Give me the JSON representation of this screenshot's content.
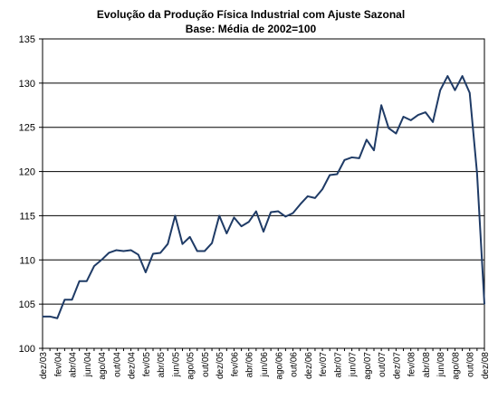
{
  "chart_data": {
    "type": "line",
    "title": "Evolução da Produção Física Industrial com Ajuste Sazonal",
    "subtitle": "Base: Média de 2002=100",
    "xlabel": "",
    "ylabel": "",
    "ylim": [
      100,
      135
    ],
    "yticks": [
      100,
      105,
      110,
      115,
      120,
      125,
      130,
      135
    ],
    "grid": true,
    "legend": "none",
    "colors": {
      "line": "#1f3b66",
      "grid": "#000000",
      "background": "#ffffff"
    },
    "x": [
      "dez/03",
      "jan/04",
      "fev/04",
      "mar/04",
      "abr/04",
      "mai/04",
      "jun/04",
      "jul/04",
      "ago/04",
      "set/04",
      "out/04",
      "nov/04",
      "dez/04",
      "jan/05",
      "fev/05",
      "mar/05",
      "abr/05",
      "mai/05",
      "jun/05",
      "jul/05",
      "ago/05",
      "set/05",
      "out/05",
      "nov/05",
      "dez/05",
      "jan/06",
      "fev/06",
      "mar/06",
      "abr/06",
      "mai/06",
      "jun/06",
      "jul/06",
      "ago/06",
      "set/06",
      "out/06",
      "nov/06",
      "dez/06",
      "jan/07",
      "fev/07",
      "mar/07",
      "abr/07",
      "mai/07",
      "jun/07",
      "jul/07",
      "ago/07",
      "set/07",
      "out/07",
      "nov/07",
      "dez/07",
      "jan/08",
      "fev/08",
      "mar/08",
      "abr/08",
      "mai/08",
      "jun/08",
      "jul/08",
      "ago/08",
      "set/08",
      "out/08",
      "nov/08",
      "dez/08"
    ],
    "xtick_labels": [
      "dez/03",
      "fev/04",
      "abr/04",
      "jun/04",
      "ago/04",
      "out/04",
      "dez/04",
      "fev/05",
      "abr/05",
      "jun/05",
      "ago/05",
      "out/05",
      "dez/05",
      "fev/06",
      "abr/06",
      "jun/06",
      "ago/06",
      "out/06",
      "dez/06",
      "fev/07",
      "abr/07",
      "jun/07",
      "ago/07",
      "out/07",
      "dez/07",
      "fev/08",
      "abr/08",
      "jun/08",
      "ago/08",
      "out/08",
      "dez/08"
    ],
    "series": [
      {
        "values": [
          103.6,
          103.6,
          103.4,
          105.5,
          105.5,
          107.6,
          107.6,
          109.3,
          110.0,
          110.8,
          111.1,
          111.0,
          111.1,
          110.6,
          108.6,
          110.7,
          110.8,
          111.8,
          115.0,
          111.8,
          112.6,
          111.0,
          111.0,
          111.9,
          115.0,
          113.0,
          114.8,
          113.8,
          114.3,
          115.5,
          113.2,
          115.4,
          115.5,
          114.9,
          115.3,
          116.3,
          117.2,
          117.0,
          118.0,
          119.6,
          119.7,
          121.3,
          121.6,
          121.5,
          123.6,
          122.4,
          127.5,
          124.9,
          124.3,
          126.2,
          125.8,
          126.4,
          126.7,
          125.6,
          129.2,
          130.8,
          129.2,
          130.8,
          128.9,
          119.8,
          105.0
        ]
      }
    ]
  }
}
